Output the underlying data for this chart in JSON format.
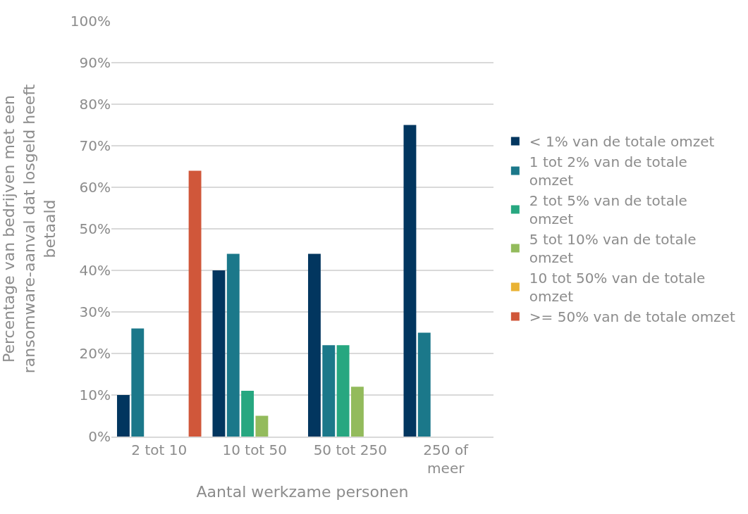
{
  "chart_data": {
    "type": "bar",
    "xlabel": "Aantal werkzame personen",
    "ylabel": "Percentage van bedrijven met een ransomware-aanval dat losgeld heeft betaald",
    "categories": [
      "2 tot 10",
      "10 tot 50",
      "50 tot 250",
      "250 of meer"
    ],
    "series": [
      {
        "name": "< 1% van de totale omzet",
        "color": "#02365f",
        "values": [
          10,
          40,
          44,
          75
        ]
      },
      {
        "name": "1 tot 2% van de totale omzet",
        "color": "#1b788a",
        "values": [
          26,
          44,
          22,
          25
        ]
      },
      {
        "name": "2 tot 5% van de totale omzet",
        "color": "#27a780",
        "values": [
          null,
          11,
          22,
          null
        ]
      },
      {
        "name": "5 tot 10% van de totale omzet",
        "color": "#93bb5c",
        "values": [
          null,
          5,
          12,
          null
        ]
      },
      {
        "name": "10 tot 50% van de totale omzet",
        "color": "#e9b234",
        "values": [
          null,
          null,
          null,
          null
        ]
      },
      {
        "name": ">= 50% van de totale omzet",
        "color": "#d0573a",
        "values": [
          64,
          null,
          null,
          null
        ]
      }
    ],
    "ylim": [
      0,
      100
    ],
    "yticks": [
      {
        "value": 0,
        "label": "0%"
      },
      {
        "value": 10,
        "label": "10%"
      },
      {
        "value": 20,
        "label": "20%"
      },
      {
        "value": 30,
        "label": "30%"
      },
      {
        "value": 40,
        "label": "40%"
      },
      {
        "value": 50,
        "label": "50%"
      },
      {
        "value": 60,
        "label": "60%"
      },
      {
        "value": 70,
        "label": "70%"
      },
      {
        "value": 80,
        "label": "80%"
      },
      {
        "value": 90,
        "label": "90%"
      },
      {
        "value": 100,
        "label": "100%"
      }
    ],
    "grid": "y",
    "legend": "right"
  }
}
